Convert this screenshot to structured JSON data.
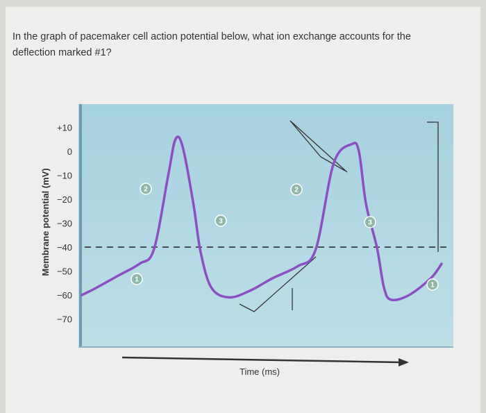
{
  "question": {
    "text": "In the graph of pacemaker cell action potential below, what ion exchange accounts for the deflection marked #1?"
  },
  "chart_data": {
    "type": "line",
    "title": "",
    "xlabel": "Time (ms)",
    "ylabel": "Membrane potential (mV)",
    "yticks": [
      "+10",
      "0",
      "−10",
      "−20",
      "−30",
      "−40",
      "−50",
      "−60",
      "−70"
    ],
    "ytick_values": [
      10,
      0,
      -10,
      -20,
      -30,
      -40,
      -50,
      -60,
      -70
    ],
    "ylim": [
      -75,
      15
    ],
    "xlim": [
      0,
      100
    ],
    "threshold_mV": -40,
    "series": [
      {
        "x": [
          0,
          4,
          10,
          16,
          20,
          24,
          26,
          28,
          31,
          33,
          36,
          41,
          47,
          53,
          60,
          65,
          70,
          75,
          77,
          79,
          82,
          84,
          86,
          91,
          97,
          100
        ],
        "y": [
          -60,
          -57,
          -52,
          -47,
          -41,
          -10,
          5,
          2,
          -22,
          -42,
          -57,
          -61,
          -58,
          -53,
          -48,
          -41,
          -5,
          3,
          0,
          -22,
          -40,
          -57,
          -62,
          -60,
          -53,
          -47
        ]
      }
    ],
    "annotations": [
      "1",
      "2",
      "3",
      "2",
      "3",
      "1"
    ],
    "colors": {
      "plot_bg": "#a9d3e0",
      "curve": "#8b4fc1",
      "label_badge": "#8fb8a8"
    }
  }
}
